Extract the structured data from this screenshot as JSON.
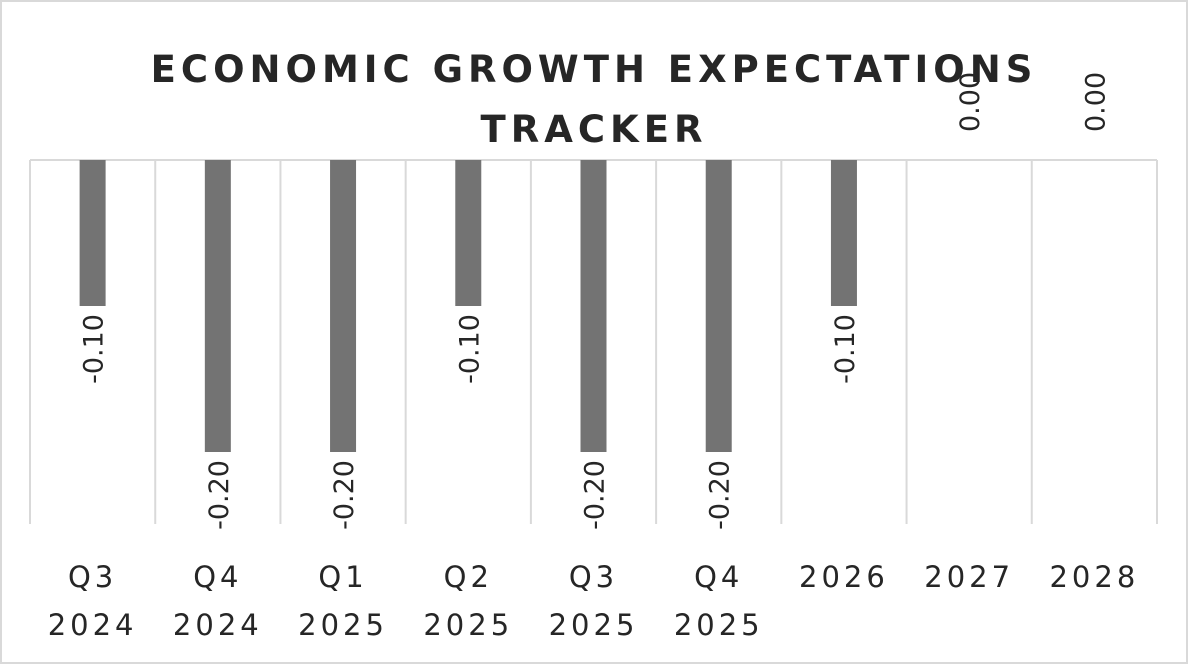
{
  "chart_data": {
    "type": "bar",
    "title_lines": [
      "ECONOMIC GROWTH EXPECTATIONS",
      "TRACKER"
    ],
    "categories": [
      [
        "Q3",
        "2024"
      ],
      [
        "Q4",
        "2024"
      ],
      [
        "Q1",
        "2025"
      ],
      [
        "Q2",
        "2025"
      ],
      [
        "Q3",
        "2025"
      ],
      [
        "Q4",
        "2025"
      ],
      [
        "2026"
      ],
      [
        "2027"
      ],
      [
        "2028"
      ]
    ],
    "values": [
      -0.1,
      -0.2,
      -0.2,
      -0.1,
      -0.2,
      -0.2,
      -0.1,
      0.0,
      0.0
    ],
    "data_labels": [
      "-0.10",
      "-0.20",
      "-0.20",
      "-0.10",
      "-0.20",
      "-0.20",
      "-0.10",
      "0.00",
      "0.00"
    ],
    "ylim": [
      -0.25,
      0.0
    ],
    "grid": true,
    "colors": {
      "bar": "#737373",
      "grid": "#d9d9d9",
      "text": "#262626",
      "border": "#d9d9d9"
    }
  }
}
